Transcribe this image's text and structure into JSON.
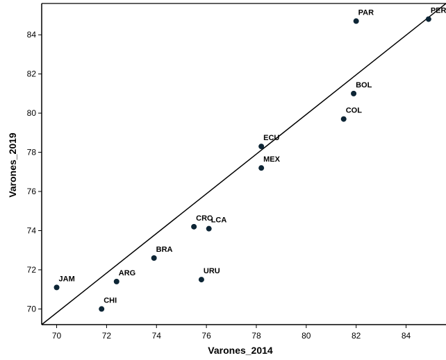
{
  "chart_data": {
    "type": "scatter",
    "xlabel": "Varones_2014",
    "ylabel": "Varones_2019",
    "xlim": [
      69.4,
      85.6
    ],
    "ylim": [
      69.2,
      85.6
    ],
    "x_ticks": [
      70,
      72,
      74,
      76,
      78,
      80,
      82,
      84
    ],
    "y_ticks": [
      70,
      72,
      74,
      76,
      78,
      80,
      82,
      84
    ],
    "grid": false,
    "reference_line": {
      "from": [
        69.4,
        69.2
      ],
      "to": [
        85.6,
        85.6
      ]
    },
    "points": [
      {
        "label": "PAR",
        "x": 82.0,
        "y": 84.7
      },
      {
        "label": "PER",
        "x": 84.9,
        "y": 84.8
      },
      {
        "label": "BOL",
        "x": 81.9,
        "y": 81.0
      },
      {
        "label": "COL",
        "x": 81.5,
        "y": 79.7
      },
      {
        "label": "ECU",
        "x": 78.2,
        "y": 78.3
      },
      {
        "label": "MEX",
        "x": 78.2,
        "y": 77.2
      },
      {
        "label": "CRC",
        "x": 75.5,
        "y": 74.2
      },
      {
        "label": "LCA",
        "x": 76.1,
        "y": 74.1
      },
      {
        "label": "BRA",
        "x": 73.9,
        "y": 72.6
      },
      {
        "label": "URU",
        "x": 75.8,
        "y": 71.5
      },
      {
        "label": "ARG",
        "x": 72.4,
        "y": 71.4
      },
      {
        "label": "JAM",
        "x": 70.0,
        "y": 71.1
      },
      {
        "label": "CHI",
        "x": 71.8,
        "y": 70.0
      }
    ],
    "colors": {
      "point": "#0d2535",
      "axis": "#000000",
      "line": "#000000"
    }
  }
}
